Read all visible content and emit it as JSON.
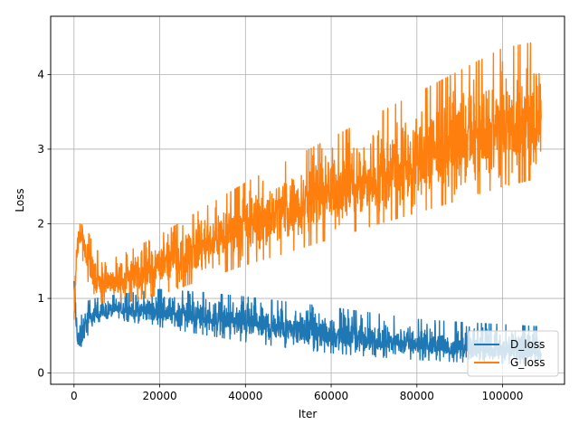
{
  "chart_data": {
    "type": "line",
    "title": "",
    "xlabel": "Iter",
    "ylabel": "Loss",
    "xlim": [
      -5450,
      114450
    ],
    "ylim": [
      -0.15,
      4.78
    ],
    "xticks": [
      0,
      20000,
      40000,
      60000,
      80000,
      100000
    ],
    "yticks": [
      0,
      1,
      2,
      3,
      4
    ],
    "grid": true,
    "legend_position": "lower-right",
    "series": [
      {
        "name": "D_loss",
        "color": "#1f77b4",
        "x": [
          0,
          300,
          800,
          1500,
          2500,
          5000,
          10000,
          20000,
          30000,
          40000,
          50000,
          60000,
          70000,
          80000,
          90000,
          100000,
          109000
        ],
        "upper": [
          1.42,
          1.2,
          0.9,
          0.85,
          0.95,
          1.0,
          1.05,
          1.12,
          1.08,
          1.02,
          0.95,
          0.88,
          0.8,
          0.72,
          0.68,
          0.65,
          0.62
        ],
        "mean": [
          1.15,
          0.8,
          0.45,
          0.35,
          0.62,
          0.78,
          0.85,
          0.82,
          0.75,
          0.66,
          0.58,
          0.5,
          0.44,
          0.38,
          0.33,
          0.3,
          0.28
        ],
        "lower": [
          0.95,
          0.6,
          0.35,
          0.28,
          0.45,
          0.65,
          0.72,
          0.62,
          0.52,
          0.42,
          0.34,
          0.27,
          0.22,
          0.18,
          0.15,
          0.13,
          0.12
        ]
      },
      {
        "name": "G_loss",
        "color": "#ff7f0e",
        "x": [
          0,
          300,
          800,
          1500,
          2500,
          5000,
          10000,
          20000,
          30000,
          40000,
          50000,
          60000,
          70000,
          80000,
          90000,
          100000,
          109000
        ],
        "upper": [
          0.9,
          1.4,
          1.9,
          2.18,
          2.0,
          1.65,
          1.55,
          1.85,
          2.2,
          2.55,
          2.85,
          3.15,
          3.45,
          3.75,
          4.05,
          4.35,
          4.45
        ],
        "mean": [
          0.75,
          1.25,
          1.7,
          1.95,
          1.65,
          1.25,
          1.18,
          1.45,
          1.72,
          1.98,
          2.2,
          2.42,
          2.62,
          2.82,
          3.02,
          3.22,
          3.35
        ],
        "lower": [
          0.68,
          1.1,
          1.5,
          1.7,
          1.35,
          0.95,
          0.92,
          1.05,
          1.25,
          1.45,
          1.62,
          1.8,
          1.98,
          2.15,
          2.32,
          2.5,
          2.62
        ]
      }
    ]
  }
}
